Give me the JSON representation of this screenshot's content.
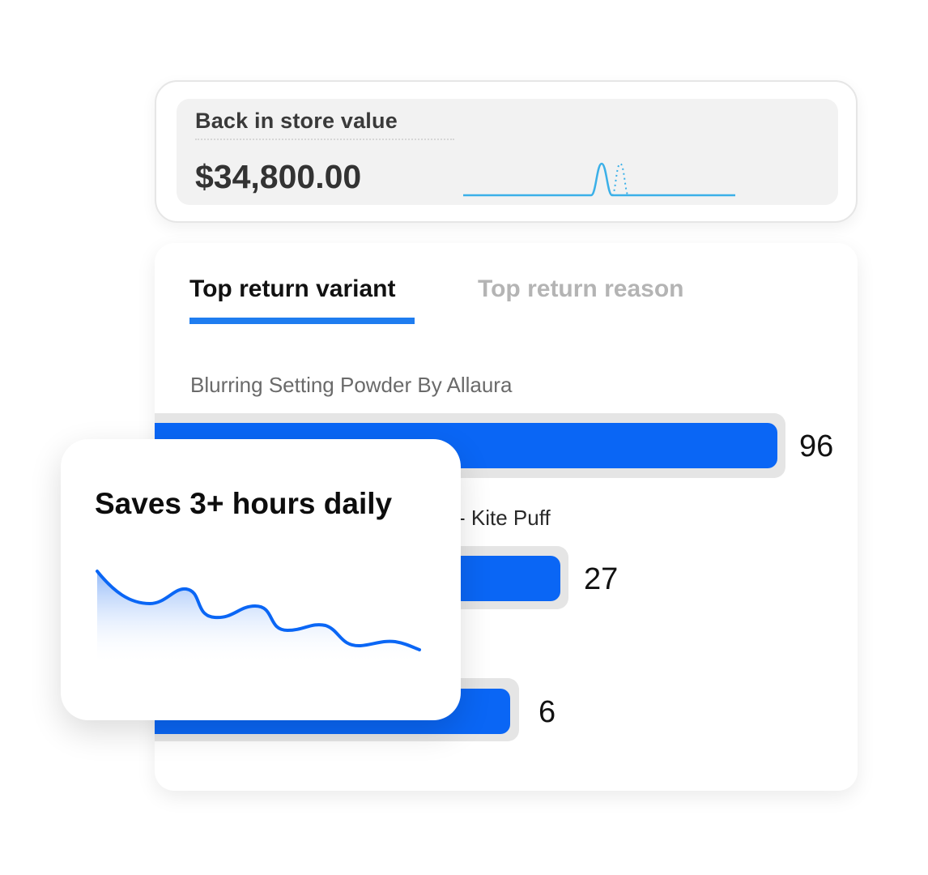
{
  "metric": {
    "title": "Back in store value",
    "value": "$34,800.00"
  },
  "tabs": [
    {
      "label": "Top return variant",
      "active": true
    },
    {
      "label": "Top return reason",
      "active": false
    }
  ],
  "items": [
    {
      "label": "Blurring Setting Powder By Allaura",
      "value": 96
    },
    {
      "label": "- Kite Puff",
      "value": 27
    },
    {
      "label": "",
      "value": 6
    }
  ],
  "overlay": {
    "title": "Saves 3+ hours daily"
  },
  "colors": {
    "accent": "#1f7df0",
    "bar": "#0a66f5",
    "sparkline": "#3bb0e8",
    "track": "#e5e5e5"
  }
}
